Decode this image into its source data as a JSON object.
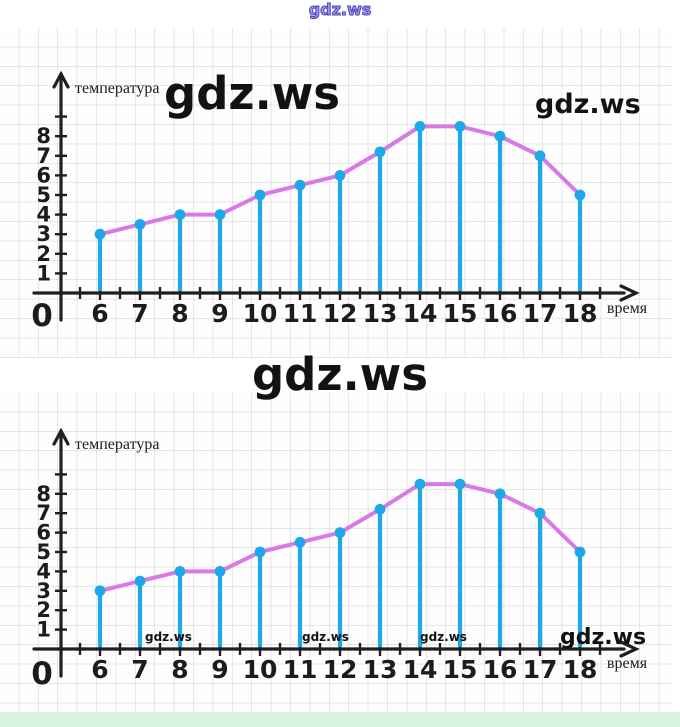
{
  "page": {
    "background": "#ffffff",
    "footer_strip_color": "#d7f4e3",
    "paper_line_color": "#e7e7ec"
  },
  "watermarks": {
    "top": "gdz.ws",
    "chart1_center": "gdz.ws",
    "chart1_right": "gdz.ws",
    "between_charts": "gdz.ws",
    "chart2_small_1": "gdz.ws",
    "chart2_small_2": "gdz.ws",
    "chart2_small_3": "gdz.ws",
    "chart2_bottom_right": "gdz.ws"
  },
  "chart_data": [
    {
      "type": "line",
      "style": "lollipop-line",
      "title": "",
      "ylabel": "температура",
      "xlabel": "время",
      "origin_label": "0",
      "x": [
        6,
        7,
        8,
        9,
        10,
        11,
        12,
        13,
        14,
        15,
        16,
        17,
        18
      ],
      "values": [
        3,
        3.5,
        4,
        4,
        5,
        5.5,
        6,
        7.2,
        8.5,
        8.5,
        8,
        7,
        5
      ],
      "yticks": [
        1,
        2,
        3,
        4,
        5,
        6,
        7,
        8
      ],
      "ylim": [
        0,
        9
      ],
      "grid": true,
      "legend": "none",
      "colors": {
        "stem": "#1ea8e9",
        "dot": "#1ea8e9",
        "curve": "#d879e6",
        "axis": "#1f1f1f",
        "text": "#1c1c1c"
      }
    },
    {
      "type": "line",
      "style": "lollipop-line",
      "title": "",
      "ylabel": "температура",
      "xlabel": "время",
      "origin_label": "0",
      "x": [
        6,
        7,
        8,
        9,
        10,
        11,
        12,
        13,
        14,
        15,
        16,
        17,
        18
      ],
      "values": [
        3,
        3.5,
        4,
        4,
        5,
        5.5,
        6,
        7.2,
        8.5,
        8.5,
        8,
        7,
        5
      ],
      "yticks": [
        1,
        2,
        3,
        4,
        5,
        6,
        7,
        8
      ],
      "ylim": [
        0,
        9
      ],
      "grid": true,
      "legend": "none",
      "colors": {
        "stem": "#1ea8e9",
        "dot": "#1ea8e9",
        "curve": "#d879e6",
        "axis": "#1f1f1f",
        "text": "#1c1c1c"
      }
    }
  ]
}
